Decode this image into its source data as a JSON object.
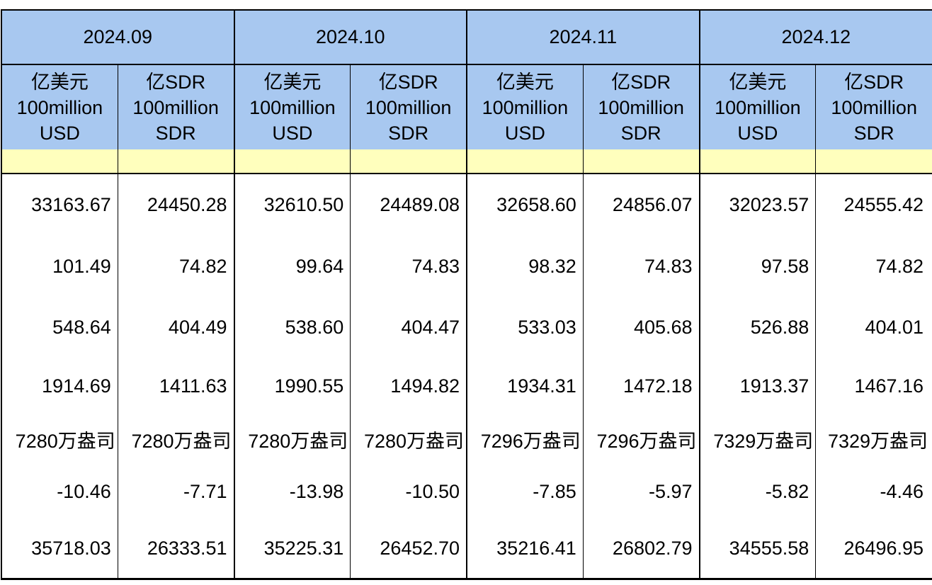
{
  "colors": {
    "header_blue": "#a8c8f0",
    "band_yellow": "#ffffbd",
    "border": "#000000",
    "text": "#000000",
    "page_bg": "#ffffff"
  },
  "chart_data": {
    "type": "table",
    "title": "",
    "column_groups": [
      "2024.09",
      "2024.10",
      "2024.11",
      "2024.12"
    ],
    "unit_columns": [
      [
        "亿美元",
        "100million",
        "USD"
      ],
      [
        "亿SDR",
        "100million",
        "SDR"
      ]
    ],
    "rows": [
      [
        "33163.67",
        "24450.28",
        "32610.50",
        "24489.08",
        "32658.60",
        "24856.07",
        "32023.57",
        "24555.42"
      ],
      [
        "101.49",
        "74.82",
        "99.64",
        "74.83",
        "98.32",
        "74.83",
        "97.58",
        "74.82"
      ],
      [
        "548.64",
        "404.49",
        "538.60",
        "404.47",
        "533.03",
        "405.68",
        "526.88",
        "404.01"
      ],
      [
        "1914.69",
        "1411.63",
        "1990.55",
        "1494.82",
        "1934.31",
        "1472.18",
        "1913.37",
        "1467.16"
      ],
      [
        "7280万盎司",
        "7280万盎司",
        "7280万盎司",
        "7280万盎司",
        "7296万盎司",
        "7296万盎司",
        "7329万盎司",
        "7329万盎司"
      ],
      [
        "-10.46",
        "-7.71",
        "-13.98",
        "-10.50",
        "-7.85",
        "-5.97",
        "-5.82",
        "-4.46"
      ],
      [
        "35718.03",
        "26333.51",
        "35225.31",
        "26452.70",
        "35216.41",
        "26802.79",
        "34555.58",
        "26496.95"
      ]
    ]
  }
}
